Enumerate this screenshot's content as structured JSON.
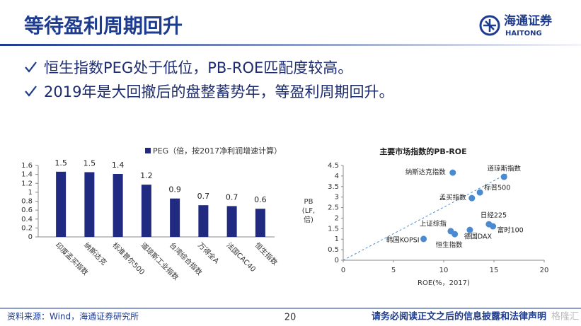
{
  "header": {
    "title": "等待盈利周期回升",
    "logo": "海通证券",
    "logo_en": "HAITONG"
  },
  "bullets": [
    "恒生指数PEG处于低位，PB-ROE匹配度较高。",
    "2019年是大回撤后的盘整蓄势年，等盈利周期回升。"
  ],
  "chart_data": [
    {
      "type": "bar",
      "legend": "PEG（倍，按2017净利润增速计算）",
      "categories": [
        "印度孟买指数",
        "纳斯达克",
        "标准普尔500",
        "道琼斯工业指数",
        "台湾综合指数",
        "万得全A",
        "法国CAC40",
        "恒生指数"
      ],
      "values": [
        1.46,
        1.45,
        1.41,
        1.17,
        0.86,
        0.71,
        0.69,
        0.63
      ],
      "value_labels": [
        "1.5",
        "1.5",
        "1.4",
        "1.2",
        "0.9",
        "0.7",
        "0.7",
        "0.6"
      ],
      "color": "#1f2a80",
      "ylim": [
        0,
        1.6
      ],
      "yticks": [
        0,
        0.2,
        0.4,
        0.6,
        0.8,
        1,
        1.2,
        1.4,
        1.6
      ]
    },
    {
      "type": "scatter",
      "title": "主要市场指数的PB-ROE",
      "x_label": "ROE(%，2017)",
      "y_label": [
        "PB",
        "(LF,",
        "倍)"
      ],
      "labels": [
        "纳斯达克指数",
        "道琼斯指数",
        "标普500",
        "孟买指数",
        "日经225",
        "富时100",
        "上证综指",
        "德国DAX",
        "恒生指数",
        "韩国KOPSI"
      ],
      "x": [
        10.9,
        16.0,
        13.6,
        12.8,
        14.5,
        14.9,
        10.7,
        12.6,
        11.1,
        8.0
      ],
      "values": [
        4.16,
        3.96,
        3.22,
        2.95,
        1.71,
        1.61,
        1.38,
        1.44,
        1.24,
        1.01
      ],
      "color": "#4a8ad0",
      "xlim": [
        0,
        20
      ],
      "xticks": [
        0,
        5,
        10,
        15,
        20
      ],
      "ylim": [
        0,
        4.5
      ],
      "yticks": [
        0,
        0.5,
        1,
        1.5,
        2,
        2.5,
        3,
        3.5,
        4,
        4.5
      ]
    }
  ],
  "footer": {
    "source": "资料来源：Wind，海通证券研究所",
    "page": "20",
    "disclaimer": "请务必阅读正文之后的信息披露和法律声明",
    "watermark": "格隆汇"
  }
}
